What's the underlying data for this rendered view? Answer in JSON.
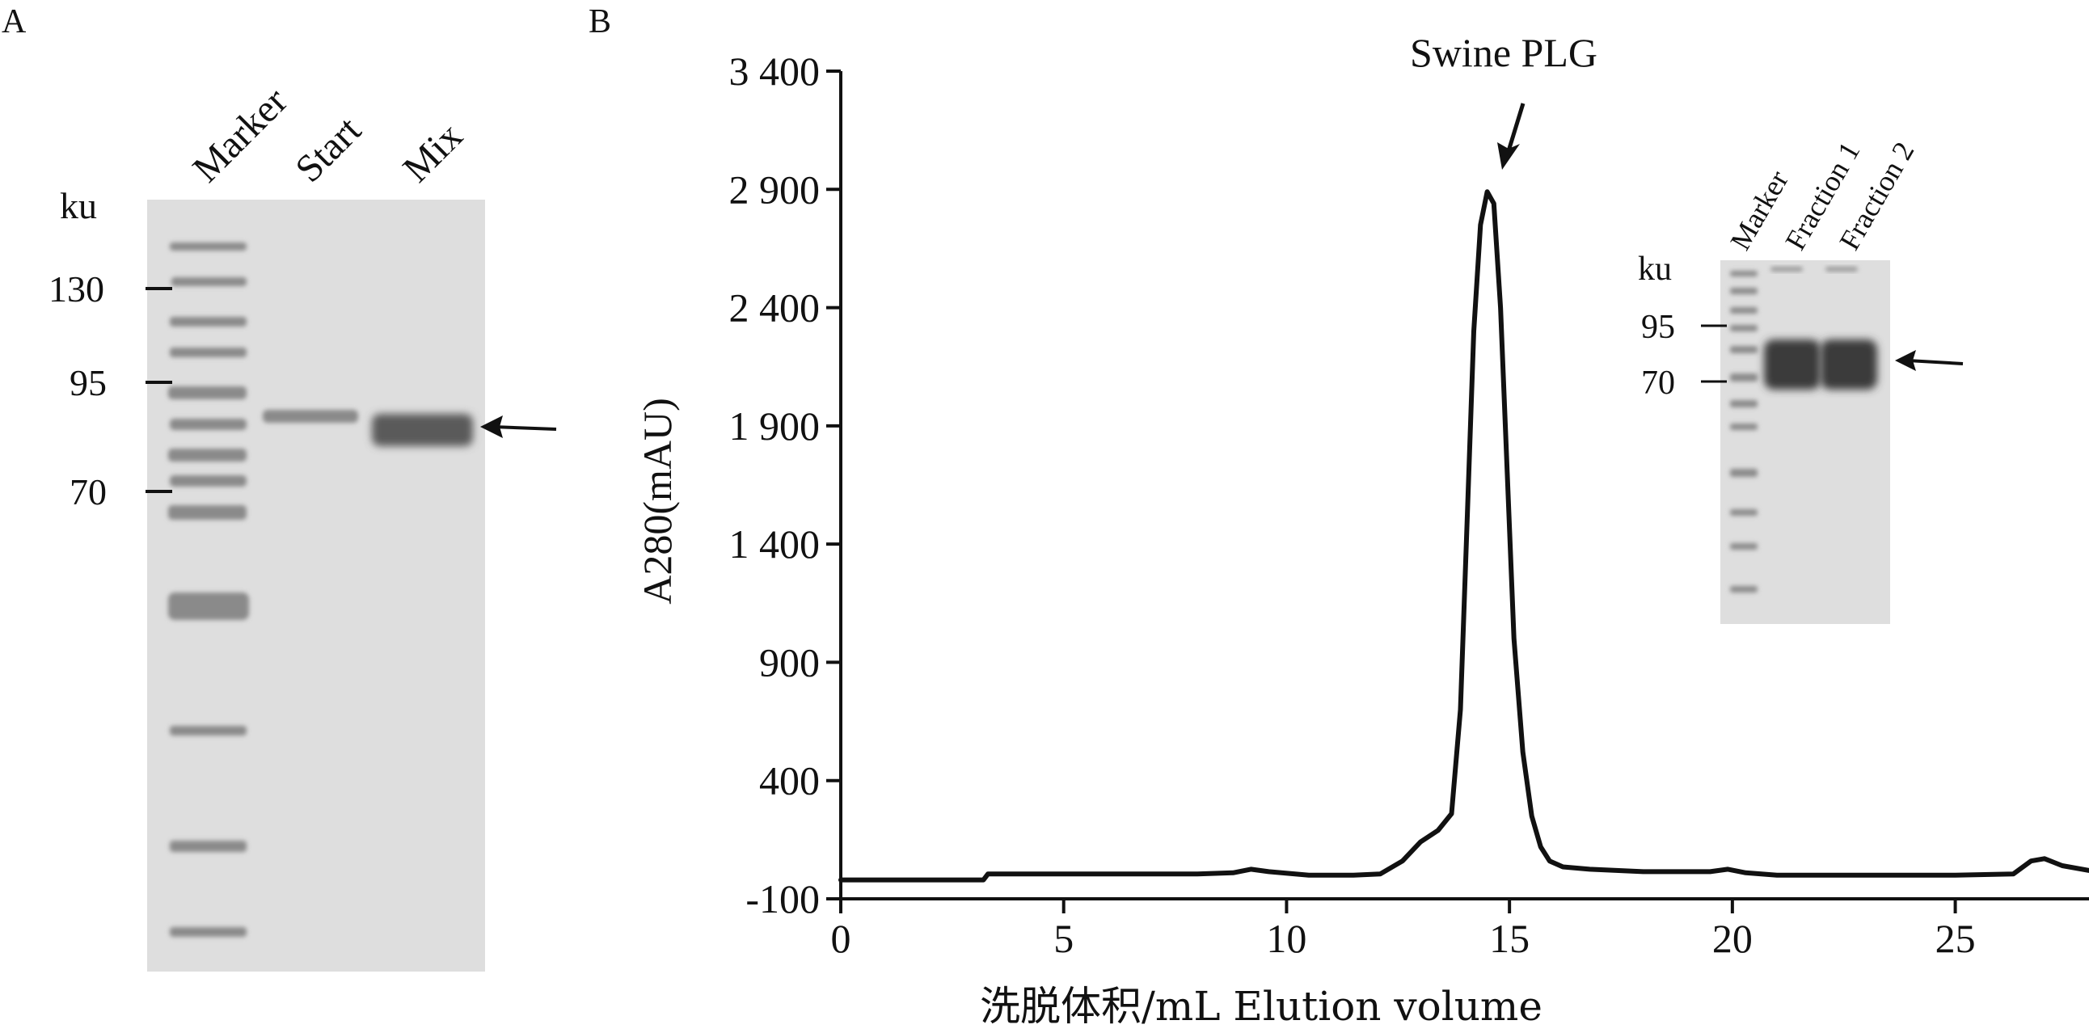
{
  "panels": {
    "a": {
      "label": "A"
    },
    "b": {
      "label": "B"
    }
  },
  "gel_a": {
    "unit": "ku",
    "lanes": [
      "Marker",
      "Start",
      "Mix"
    ],
    "markers": [
      {
        "label": "130",
        "ku": 130
      },
      {
        "label": "95",
        "ku": 95
      },
      {
        "label": "70",
        "ku": 70
      }
    ]
  },
  "inset_gel": {
    "unit": "ku",
    "lanes": [
      "Marker",
      "Fraction 1",
      "Fraction 2"
    ],
    "markers": [
      {
        "label": "95",
        "ku": 95
      },
      {
        "label": "70",
        "ku": 70
      }
    ]
  },
  "colors": {
    "curve": "#111111",
    "gel_background": "#dcdcdc",
    "marker_band": "#8e8e8e",
    "protein_band": "#4a4a4a"
  },
  "chart_data": {
    "type": "line",
    "title": "",
    "xlabel": "洗脱体积/mL Elution volume",
    "ylabel": "A280(mAU)",
    "xlim": [
      0,
      28
    ],
    "ylim": [
      -100,
      3400
    ],
    "xticks": [
      0,
      5,
      10,
      15,
      20,
      25
    ],
    "xtick_labels": [
      "0",
      "5",
      "10",
      "15",
      "20",
      "25"
    ],
    "yticks": [
      -100,
      400,
      900,
      1400,
      1900,
      2400,
      2900,
      3400
    ],
    "ytick_labels": [
      "-100",
      "400",
      "900",
      "1 400",
      "1 900",
      "2 400",
      "2 900",
      "3 400"
    ],
    "grid": false,
    "annotations": [
      {
        "text": "Swine PLG",
        "x": 14.5,
        "y": 2900
      }
    ],
    "series": [
      {
        "x": [
          0,
          3.2,
          3.3,
          5,
          8,
          8.8,
          9.2,
          9.6,
          10.5,
          11.5,
          12.1,
          12.6,
          13.0,
          13.4,
          13.7,
          13.9,
          14.05,
          14.2,
          14.35,
          14.5,
          14.65,
          14.8,
          14.95,
          15.1,
          15.3,
          15.5,
          15.7,
          15.9,
          16.2,
          16.8,
          18,
          19.5,
          19.9,
          20.3,
          21,
          23,
          25,
          26.3,
          26.7,
          27.0,
          27.4,
          28
        ],
        "y": [
          -20,
          -20,
          5,
          5,
          5,
          10,
          25,
          15,
          0,
          0,
          5,
          60,
          140,
          190,
          260,
          700,
          1500,
          2300,
          2750,
          2890,
          2840,
          2400,
          1700,
          1000,
          520,
          250,
          120,
          60,
          35,
          25,
          15,
          15,
          25,
          10,
          0,
          0,
          0,
          5,
          60,
          70,
          40,
          20
        ]
      }
    ]
  }
}
